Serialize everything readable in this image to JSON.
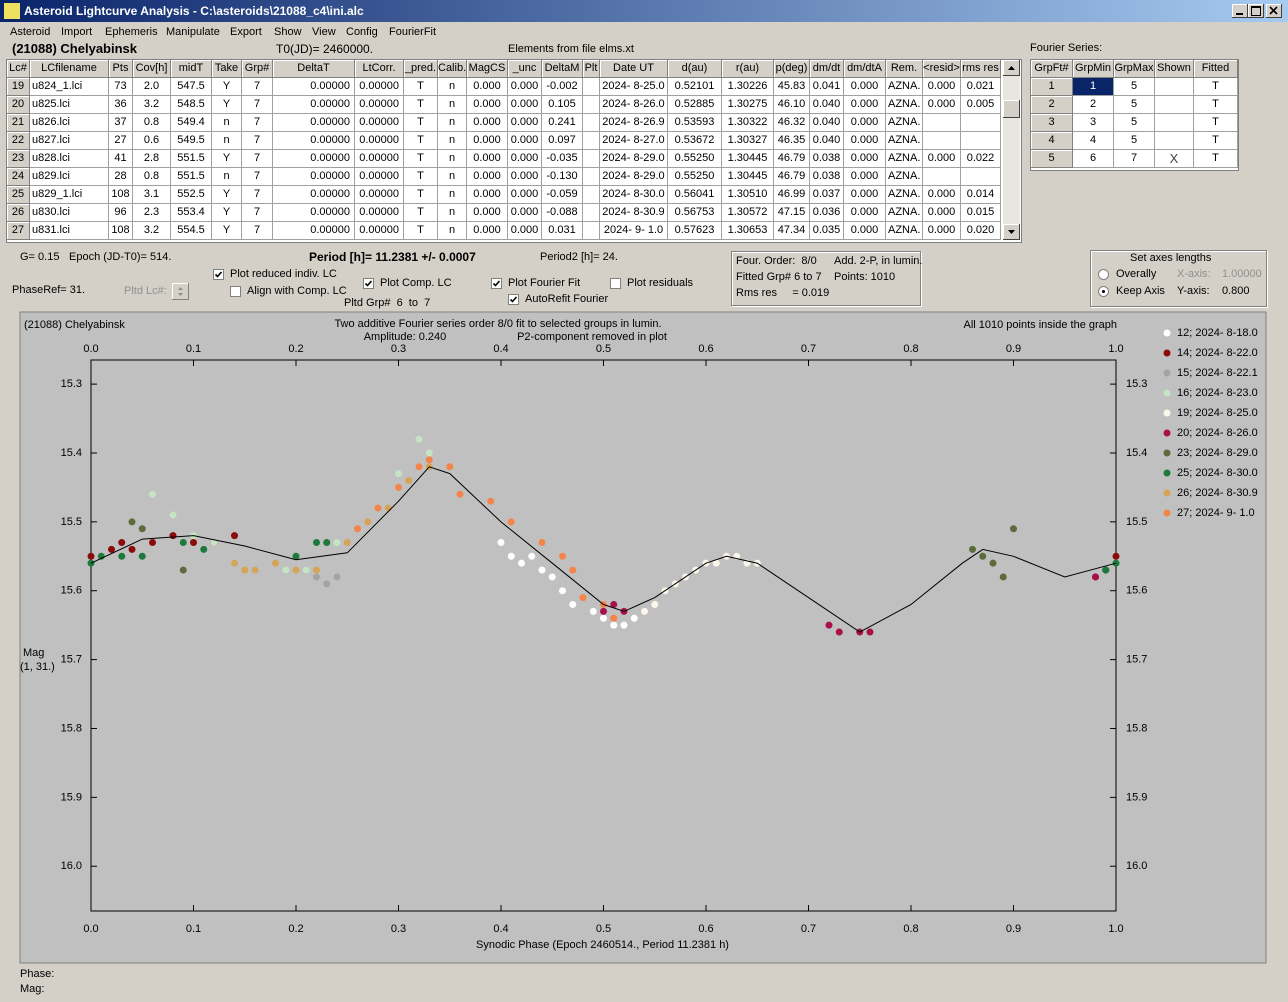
{
  "window": {
    "title": "Asteroid Lightcurve Analysis - C:\\asteroids\\21088_c4\\ini.alc",
    "menu": [
      "Asteroid",
      "Import",
      "Ephemeris",
      "Manipulate",
      "Export",
      "Show",
      "View",
      "Config",
      "FourierFit"
    ]
  },
  "header": {
    "asteroid": "(21088) Chelyabinsk",
    "t0": "T0(JD)= 2460000.",
    "elements": "Elements from file elms.xt",
    "fourier_title": "Fourier Series:"
  },
  "table": {
    "columns": [
      "Lc#",
      "LCfilename",
      "Pts",
      "Cov[h]",
      "midT",
      "Take",
      "Grp#",
      "DeltaT",
      "LtCorr.",
      "_pred.",
      "Calib.",
      "MagCS",
      "_unc",
      "DeltaM",
      "Plt",
      "Date UT",
      "d(au)",
      "r(au)",
      "p(deg)",
      "dm/dt",
      "dm/dtA",
      "Rem.",
      "<resid>",
      "rms res"
    ],
    "rows": [
      [
        "19",
        "u824_1.lci",
        "73",
        "2.0",
        "547.5",
        "Y",
        "7",
        "0.00000",
        "0.00000",
        "T",
        "n",
        "0.000",
        "0.000",
        "-0.002",
        null,
        "2024- 8-25.0",
        "0.52101",
        "1.30226",
        "45.83",
        "0.041",
        "0.000",
        "AZNA.",
        "0.000",
        "0.021"
      ],
      [
        "20",
        "u825.lci",
        "36",
        "3.2",
        "548.5",
        "Y",
        "7",
        "0.00000",
        "0.00000",
        "T",
        "n",
        "0.000",
        "0.000",
        "0.105",
        null,
        "2024- 8-26.0",
        "0.52885",
        "1.30275",
        "46.10",
        "0.040",
        "0.000",
        "AZNA.",
        "0.000",
        "0.005"
      ],
      [
        "21",
        "u826.lci",
        "37",
        "0.8",
        "549.4",
        "n",
        "7",
        "0.00000",
        "0.00000",
        "T",
        "n",
        "0.000",
        "0.000",
        "0.241",
        null,
        "2024- 8-26.9",
        "0.53593",
        "1.30322",
        "46.32",
        "0.040",
        "0.000",
        "AZNA.",
        null,
        null
      ],
      [
        "22",
        "u827.lci",
        "27",
        "0.6",
        "549.5",
        "n",
        "7",
        "0.00000",
        "0.00000",
        "T",
        "n",
        "0.000",
        "0.000",
        "0.097",
        null,
        "2024- 8-27.0",
        "0.53672",
        "1.30327",
        "46.35",
        "0.040",
        "0.000",
        "AZNA.",
        null,
        null
      ],
      [
        "23",
        "u828.lci",
        "41",
        "2.8",
        "551.5",
        "Y",
        "7",
        "0.00000",
        "0.00000",
        "T",
        "n",
        "0.000",
        "0.000",
        "-0.035",
        null,
        "2024- 8-29.0",
        "0.55250",
        "1.30445",
        "46.79",
        "0.038",
        "0.000",
        "AZNA.",
        "0.000",
        "0.022"
      ],
      [
        "24",
        "u829.lci",
        "28",
        "0.8",
        "551.5",
        "n",
        "7",
        "0.00000",
        "0.00000",
        "T",
        "n",
        "0.000",
        "0.000",
        "-0.130",
        null,
        "2024- 8-29.0",
        "0.55250",
        "1.30445",
        "46.79",
        "0.038",
        "0.000",
        "AZNA.",
        null,
        null
      ],
      [
        "25",
        "u829_1.lci",
        "108",
        "3.1",
        "552.5",
        "Y",
        "7",
        "0.00000",
        "0.00000",
        "T",
        "n",
        "0.000",
        "0.000",
        "-0.059",
        null,
        "2024- 8-30.0",
        "0.56041",
        "1.30510",
        "46.99",
        "0.037",
        "0.000",
        "AZNA.",
        "0.000",
        "0.014"
      ],
      [
        "26",
        "u830.lci",
        "96",
        "2.3",
        "553.4",
        "Y",
        "7",
        "0.00000",
        "0.00000",
        "T",
        "n",
        "0.000",
        "0.000",
        "-0.088",
        null,
        "2024- 8-30.9",
        "0.56753",
        "1.30572",
        "47.15",
        "0.036",
        "0.000",
        "AZNA.",
        "0.000",
        "0.015"
      ],
      [
        "27",
        "u831.lci",
        "108",
        "3.2",
        "554.5",
        "Y",
        "7",
        "0.00000",
        "0.00000",
        "T",
        "n",
        "0.000",
        "0.000",
        "0.031",
        null,
        "2024- 9- 1.0",
        "0.57623",
        "1.30653",
        "47.34",
        "0.035",
        "0.000",
        "AZNA.",
        "0.000",
        "0.020"
      ]
    ]
  },
  "fourier_table": {
    "columns": [
      "GrpFt#",
      "GrpMin",
      "GrpMax",
      "Shown",
      "Fitted"
    ],
    "rows": [
      [
        "1",
        "1",
        "5",
        null,
        "T"
      ],
      [
        "2",
        "2",
        "5",
        null,
        "T"
      ],
      [
        "3",
        "3",
        "5",
        null,
        "T"
      ],
      [
        "4",
        "4",
        "5",
        null,
        "T"
      ],
      [
        "5",
        "6",
        "7",
        "X",
        "T"
      ]
    ]
  },
  "controls": {
    "g": "G= 0.15",
    "epoch": "Epoch (JD-T0)= 514.",
    "period": "Period [h]= 11.2381 +/- 0.0007",
    "period2": "Period2 [h]= 24.",
    "phaseref": "PhaseRef= 31.",
    "pltd_lc": "Pltd Lc#:",
    "pltd_grp": "Pltd Grp#  6  to  7",
    "checkboxes": [
      {
        "label": "Plot reduced indiv. LC",
        "checked": true
      },
      {
        "label": "Align with Comp. LC",
        "checked": false
      },
      {
        "label": "Plot Comp. LC",
        "checked": true
      },
      {
        "label": "Plot Fourier Fit",
        "checked": true
      },
      {
        "label": "AutoRefit Fourier",
        "checked": true
      },
      {
        "label": "Plot residuals",
        "checked": false
      }
    ]
  },
  "info": [
    "Four. Order:  8/0",
    "Add. 2-P, in lumin.",
    "Fitted Grp# 6 to 7",
    "Points: 1010",
    "Rms res     = 0.019"
  ],
  "axes_box": {
    "title": "Set axes lengths",
    "radios": [
      {
        "label": "Overally",
        "selected": false
      },
      {
        "label": "Keep Axis",
        "selected": true
      }
    ],
    "x_label": "X-axis:",
    "x_value": "1.00000",
    "y_label": "Y-axis:",
    "y_value": "0.800"
  },
  "status": {
    "phase": "Phase:",
    "mag": "Mag:"
  },
  "chart_data": {
    "type": "scatter",
    "title": "(21088) Chelyabinsk",
    "subtitle": "Two additive Fourier series order 8/0 fit to selected groups in lumin.",
    "annotations": [
      "Amplitude: 0.240",
      "P2-component removed in plot",
      "All 1010 points inside the graph"
    ],
    "y_label": "Mag",
    "y_label2": "(1, 31.)",
    "x_label": "Synodic Phase (Epoch 2460514., Period 11.2381 h)",
    "xlim": [
      0,
      1
    ],
    "ylim": [
      15.265,
      16.065
    ],
    "invert_y": true,
    "xticks": [
      {
        "value": 0,
        "label": "0.0"
      },
      0.1,
      0.2,
      0.3,
      0.4,
      0.5,
      0.6,
      0.7,
      0.8,
      0.9,
      {
        "value": 1,
        "label": "1.0"
      }
    ],
    "yticks": [
      15.3,
      15.4,
      15.5,
      15.6,
      15.7,
      15.8,
      15.9,
      {
        "value": 16,
        "label": "16.0"
      }
    ],
    "series": [
      {
        "name": "12; 2024- 8-18.0",
        "color": "#ffffff",
        "x": [
          0.4,
          0.41,
          0.42,
          0.43,
          0.44,
          0.45,
          0.46,
          0.47,
          0.49,
          0.5,
          0.51,
          0.52,
          0.53
        ],
        "values": [
          15.53,
          15.55,
          15.56,
          15.55,
          15.57,
          15.58,
          15.6,
          15.62,
          15.63,
          15.64,
          15.65,
          15.65,
          15.64
        ]
      },
      {
        "name": "14; 2024- 8-22.0",
        "color": "#8b0a0a",
        "x": [
          0.0,
          0.02,
          0.03,
          0.04,
          0.06,
          0.08,
          0.1,
          0.12,
          0.14,
          0.98,
          0.99,
          1.0
        ],
        "values": [
          15.55,
          15.54,
          15.53,
          15.54,
          15.53,
          15.52,
          15.53,
          15.53,
          15.52,
          15.58,
          15.57,
          15.55
        ]
      },
      {
        "name": "15; 2024- 8-22.1",
        "color": "#a4a4a4",
        "x": [
          0.21,
          0.22,
          0.23,
          0.24
        ],
        "values": [
          15.57,
          15.58,
          15.59,
          15.58
        ]
      },
      {
        "name": "16; 2024- 8-23.0",
        "color": "#c4e4c4",
        "x": [
          0.04,
          0.06,
          0.08,
          0.1,
          0.12,
          0.14,
          0.19,
          0.21,
          0.24,
          0.28,
          0.3,
          0.32,
          0.33
        ],
        "values": [
          15.5,
          15.46,
          15.49,
          15.52,
          15.53,
          15.56,
          15.57,
          15.57,
          15.53,
          15.48,
          15.43,
          15.38,
          15.4
        ]
      },
      {
        "name": "19; 2024- 8-25.0",
        "color": "#fbf6ea",
        "x": [
          0.54,
          0.55,
          0.56,
          0.57,
          0.58,
          0.59,
          0.6,
          0.61,
          0.62,
          0.63,
          0.64,
          0.65
        ],
        "values": [
          15.63,
          15.62,
          15.6,
          15.59,
          15.58,
          15.57,
          15.56,
          15.56,
          15.55,
          15.55,
          15.56,
          15.56
        ]
      },
      {
        "name": "20; 2024- 8-26.0",
        "color": "#a8104c",
        "x": [
          0.5,
          0.51,
          0.52,
          0.72,
          0.73,
          0.75,
          0.76,
          0.98
        ],
        "values": [
          15.63,
          15.62,
          15.63,
          15.65,
          15.66,
          15.66,
          15.66,
          15.58
        ]
      },
      {
        "name": "23; 2024- 8-29.0",
        "color": "#5c6a3c",
        "x": [
          0.04,
          0.05,
          0.09,
          0.86,
          0.87,
          0.88,
          0.89,
          0.9
        ],
        "values": [
          15.5,
          15.51,
          15.57,
          15.54,
          15.55,
          15.56,
          15.58,
          15.51
        ]
      },
      {
        "name": "25; 2024- 8-30.0",
        "color": "#1c7a3c",
        "x": [
          0.0,
          0.01,
          0.03,
          0.05,
          0.09,
          0.11,
          0.2,
          0.22,
          0.23,
          0.99,
          1.0
        ],
        "values": [
          15.56,
          15.55,
          15.55,
          15.55,
          15.53,
          15.54,
          15.55,
          15.53,
          15.53,
          15.57,
          15.56
        ]
      },
      {
        "name": "26; 2024- 8-30.9",
        "color": "#d4a458",
        "x": [
          0.14,
          0.15,
          0.16,
          0.18,
          0.2,
          0.22,
          0.25,
          0.27,
          0.29,
          0.31,
          0.33
        ],
        "values": [
          15.56,
          15.57,
          15.57,
          15.56,
          15.57,
          15.57,
          15.53,
          15.5,
          15.48,
          15.44,
          15.42
        ]
      },
      {
        "name": "27; 2024- 9- 1.0",
        "color": "#f4844a",
        "x": [
          0.26,
          0.28,
          0.3,
          0.32,
          0.33,
          0.35,
          0.36,
          0.39,
          0.41,
          0.44,
          0.46,
          0.47,
          0.48,
          0.5,
          0.51
        ],
        "values": [
          15.51,
          15.48,
          15.45,
          15.42,
          15.41,
          15.42,
          15.46,
          15.47,
          15.5,
          15.53,
          15.55,
          15.57,
          15.61,
          15.62,
          15.64
        ]
      }
    ],
    "fit_curve": {
      "color": "#000000",
      "x": [
        0,
        0.05,
        0.1,
        0.15,
        0.2,
        0.25,
        0.3,
        0.33,
        0.35,
        0.4,
        0.45,
        0.5,
        0.52,
        0.55,
        0.6,
        0.62,
        0.65,
        0.7,
        0.75,
        0.8,
        0.85,
        0.87,
        0.9,
        0.95,
        1.0
      ],
      "values": [
        15.56,
        15.525,
        15.52,
        15.535,
        15.555,
        15.545,
        15.47,
        15.42,
        15.43,
        15.5,
        15.56,
        15.62,
        15.63,
        15.61,
        15.56,
        15.55,
        15.56,
        15.61,
        15.66,
        15.62,
        15.56,
        15.54,
        15.55,
        15.58,
        15.56
      ]
    }
  }
}
